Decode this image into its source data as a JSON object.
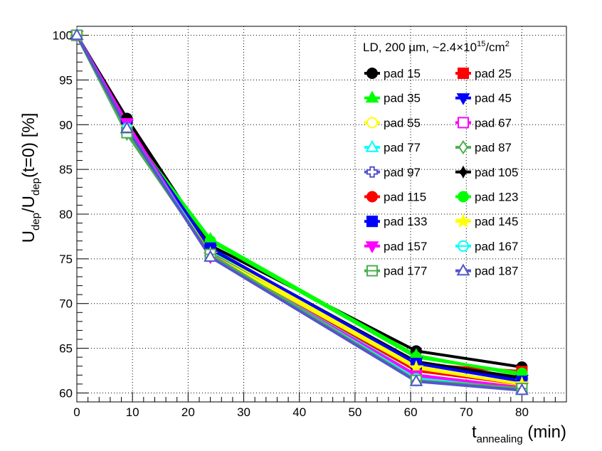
{
  "chart_data": {
    "type": "line",
    "xlabel": {
      "main": "t",
      "sub": "annealing",
      "suffix": " (min)"
    },
    "ylabel": {
      "p1": "U",
      "s1": "dep",
      "p2": "/U",
      "s2": "dep",
      "p3": "(t=0) [%]"
    },
    "xlim": [
      0,
      88
    ],
    "ylim": [
      59,
      101
    ],
    "xticks": [
      0,
      10,
      20,
      30,
      40,
      50,
      60,
      70,
      80
    ],
    "yticks": [
      60,
      65,
      70,
      75,
      80,
      85,
      90,
      95,
      100
    ],
    "grid": true,
    "legend": {
      "position": "top-right",
      "header": {
        "text": "LD, 200 µm, ~2.4×10",
        "sup1": "15",
        "mid": "/cm",
        "sup2": "2"
      }
    },
    "x": [
      0,
      9,
      24,
      61,
      80
    ],
    "series": [
      {
        "name": "pad 15",
        "color": "#000000",
        "marker": "circle",
        "filled": true,
        "values": [
          100,
          90.7,
          76.5,
          64.7,
          62.9
        ]
      },
      {
        "name": "pad 25",
        "color": "#ff0000",
        "marker": "square",
        "filled": true,
        "values": [
          100,
          90.0,
          76.0,
          63.2,
          62.4
        ]
      },
      {
        "name": "pad 35",
        "color": "#00ff00",
        "marker": "triangle-up",
        "filled": true,
        "values": [
          100,
          89.5,
          77.2,
          64.2,
          62.0
        ]
      },
      {
        "name": "pad 45",
        "color": "#0000ff",
        "marker": "triangle-down",
        "filled": true,
        "values": [
          100,
          90.0,
          76.0,
          63.5,
          61.5
        ]
      },
      {
        "name": "pad 55",
        "color": "#ffff00",
        "marker": "circle",
        "filled": false,
        "values": [
          100,
          89.8,
          75.8,
          63.0,
          60.8
        ]
      },
      {
        "name": "pad 67",
        "color": "#ff00ff",
        "marker": "square",
        "filled": false,
        "values": [
          100,
          90.0,
          75.5,
          61.8,
          60.6
        ]
      },
      {
        "name": "pad 77",
        "color": "#00ffff",
        "marker": "triangle-up",
        "filled": false,
        "values": [
          100,
          89.6,
          75.8,
          62.0,
          60.5
        ]
      },
      {
        "name": "pad 87",
        "color": "#4caf50",
        "marker": "diamond",
        "filled": false,
        "values": [
          100,
          89.0,
          75.5,
          61.5,
          60.6
        ]
      },
      {
        "name": "pad 97",
        "color": "#5555cc",
        "marker": "cross",
        "filled": false,
        "values": [
          100,
          89.5,
          75.3,
          61.5,
          60.4
        ]
      },
      {
        "name": "pad 105",
        "color": "#000000",
        "marker": "star4",
        "filled": true,
        "values": [
          100,
          90.2,
          76.1,
          63.5,
          61.7
        ]
      },
      {
        "name": "pad 115",
        "color": "#ff0000",
        "marker": "circle",
        "filled": true,
        "values": [
          100,
          90.0,
          75.6,
          62.5,
          61.0
        ]
      },
      {
        "name": "pad 123",
        "color": "#00ff00",
        "marker": "circle",
        "filled": true,
        "values": [
          100,
          89.6,
          77.0,
          64.0,
          62.2
        ]
      },
      {
        "name": "pad 133",
        "color": "#0000ff",
        "marker": "square",
        "filled": true,
        "values": [
          100,
          89.8,
          76.2,
          63.3,
          61.3
        ]
      },
      {
        "name": "pad 145",
        "color": "#ffff00",
        "marker": "star",
        "filled": true,
        "values": [
          100,
          89.7,
          75.5,
          62.8,
          61.0
        ]
      },
      {
        "name": "pad 157",
        "color": "#ff00ff",
        "marker": "triangle-down",
        "filled": true,
        "values": [
          100,
          90.2,
          75.2,
          62.0,
          60.6
        ]
      },
      {
        "name": "pad 167",
        "color": "#00ffff",
        "marker": "circle-cross",
        "filled": false,
        "values": [
          100,
          89.6,
          75.4,
          61.6,
          60.4
        ]
      },
      {
        "name": "pad 177",
        "color": "#4caf50",
        "marker": "square-cross",
        "filled": false,
        "values": [
          100,
          89.1,
          75.5,
          61.4,
          60.5
        ]
      },
      {
        "name": "pad 187",
        "color": "#5555cc",
        "marker": "triangle-up",
        "filled": false,
        "values": [
          100,
          89.6,
          75.2,
          61.3,
          60.3
        ]
      }
    ]
  }
}
